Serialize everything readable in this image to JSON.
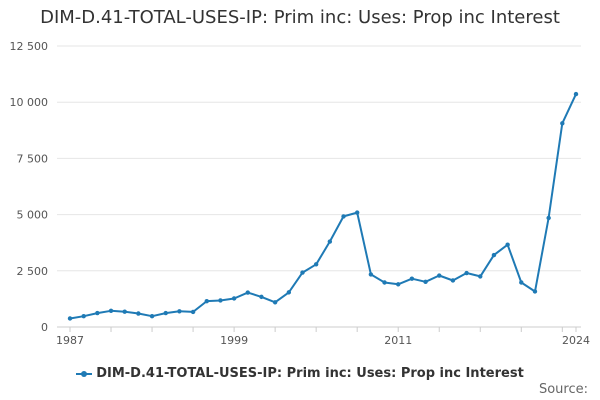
{
  "colors": {
    "series": "#1f7ab5",
    "grid": "#e6e6e6",
    "axis": "#cccccc"
  },
  "source_label": "Source:",
  "chart_data": {
    "type": "line",
    "title": "DIM-D.41-TOTAL-USES-IP: Prim inc: Uses: Prop inc Interest",
    "xlabel": "",
    "ylabel": "",
    "ylim": [
      0,
      12500
    ],
    "yticks": [
      0,
      2500,
      5000,
      7500,
      10000,
      12500
    ],
    "ytick_labels": [
      "0",
      "2 500",
      "5 000",
      "7 500",
      "10 000",
      "12 500"
    ],
    "xticks": [
      1987,
      1999,
      2011,
      2024
    ],
    "xtick_labels": [
      "1987",
      "1999",
      "2011",
      "2024"
    ],
    "grid": true,
    "legend_position": "bottom",
    "series": [
      {
        "name": "DIM-D.41-TOTAL-USES-IP: Prim inc: Uses: Prop inc Interest",
        "x": [
          1987,
          1988,
          1989,
          1990,
          1991,
          1992,
          1993,
          1994,
          1995,
          1996,
          1997,
          1998,
          1999,
          2000,
          2001,
          2002,
          2003,
          2004,
          2005,
          2006,
          2007,
          2008,
          2009,
          2010,
          2011,
          2012,
          2013,
          2014,
          2015,
          2016,
          2017,
          2018,
          2019,
          2020,
          2021,
          2022,
          2023,
          2024
        ],
        "values": [
          380,
          480,
          620,
          720,
          680,
          600,
          480,
          620,
          700,
          670,
          1150,
          1180,
          1270,
          1530,
          1340,
          1100,
          1540,
          2420,
          2790,
          3800,
          4920,
          5090,
          2340,
          1980,
          1900,
          2150,
          2010,
          2290,
          2070,
          2400,
          2250,
          3200,
          3660,
          1980,
          1580,
          4850,
          9060,
          10360
        ]
      }
    ]
  }
}
